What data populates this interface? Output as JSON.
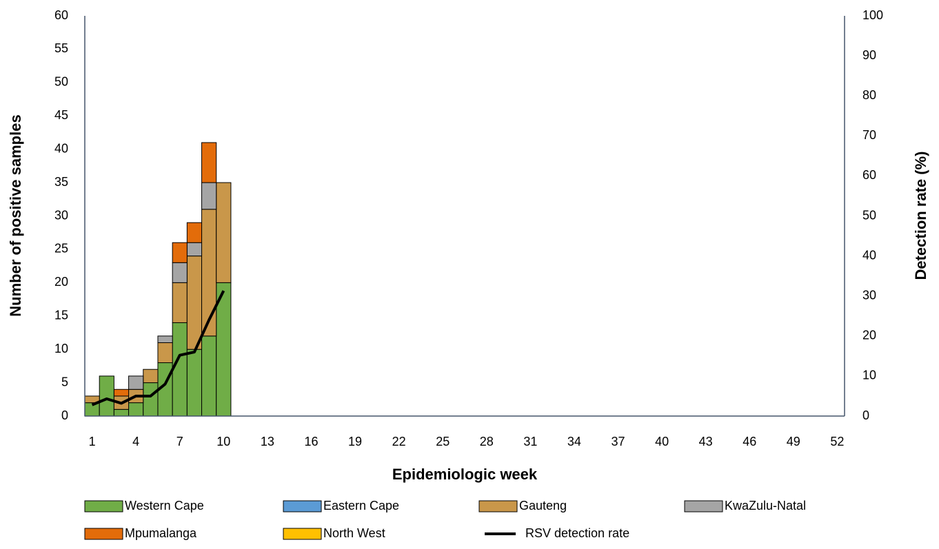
{
  "chart_data": {
    "type": "bar",
    "stacked": true,
    "xlabel": "Epidemiologic week",
    "ylabel": "Number of positive samples",
    "y2label": "Detection rate (%)",
    "categories": [
      1,
      null,
      null,
      4,
      null,
      null,
      7,
      null,
      null,
      10,
      null,
      null,
      13,
      null,
      null,
      16,
      null,
      null,
      19,
      null,
      null,
      22,
      null,
      null,
      25,
      null,
      null,
      28,
      null,
      null,
      31,
      null,
      null,
      34,
      null,
      null,
      37,
      null,
      null,
      40,
      null,
      null,
      43,
      null,
      null,
      46,
      null,
      null,
      49,
      null,
      null,
      52
    ],
    "series": [
      {
        "name": "Western Cape",
        "color": "#70ad47",
        "values": [
          2,
          6,
          1,
          2,
          5,
          8,
          14,
          10,
          12,
          20,
          null,
          null,
          null,
          null,
          null,
          null,
          null,
          null,
          null,
          null,
          null,
          null,
          null,
          null,
          null,
          null,
          null,
          null,
          null,
          null,
          null,
          null,
          null,
          null,
          null,
          null,
          null,
          null,
          null,
          null,
          null,
          null,
          null,
          null,
          null,
          null,
          null,
          null,
          null,
          null,
          null,
          null
        ]
      },
      {
        "name": "Eastern Cape",
        "color": "#5b9bd5",
        "values": [
          0,
          0,
          0,
          0,
          0,
          0,
          0,
          0,
          0,
          0,
          null,
          null,
          null,
          null,
          null,
          null,
          null,
          null,
          null,
          null,
          null,
          null,
          null,
          null,
          null,
          null,
          null,
          null,
          null,
          null,
          null,
          null,
          null,
          null,
          null,
          null,
          null,
          null,
          null,
          null,
          null,
          null,
          null,
          null,
          null,
          null,
          null,
          null,
          null,
          null,
          null,
          null
        ]
      },
      {
        "name": "Gauteng",
        "color": "#c9974a",
        "values": [
          1,
          0,
          2,
          2,
          2,
          3,
          6,
          14,
          19,
          15,
          null,
          null,
          null,
          null,
          null,
          null,
          null,
          null,
          null,
          null,
          null,
          null,
          null,
          null,
          null,
          null,
          null,
          null,
          null,
          null,
          null,
          null,
          null,
          null,
          null,
          null,
          null,
          null,
          null,
          null,
          null,
          null,
          null,
          null,
          null,
          null,
          null,
          null,
          null,
          null,
          null,
          null
        ]
      },
      {
        "name": "KwaZulu-Natal",
        "color": "#a5a5a5",
        "values": [
          0,
          0,
          0,
          2,
          0,
          1,
          3,
          2,
          4,
          0,
          null,
          null,
          null,
          null,
          null,
          null,
          null,
          null,
          null,
          null,
          null,
          null,
          null,
          null,
          null,
          null,
          null,
          null,
          null,
          null,
          null,
          null,
          null,
          null,
          null,
          null,
          null,
          null,
          null,
          null,
          null,
          null,
          null,
          null,
          null,
          null,
          null,
          null,
          null,
          null,
          null,
          null
        ]
      },
      {
        "name": "Mpumalanga",
        "color": "#e36c0a",
        "values": [
          0,
          0,
          1,
          0,
          0,
          0,
          3,
          3,
          6,
          0,
          null,
          null,
          null,
          null,
          null,
          null,
          null,
          null,
          null,
          null,
          null,
          null,
          null,
          null,
          null,
          null,
          null,
          null,
          null,
          null,
          null,
          null,
          null,
          null,
          null,
          null,
          null,
          null,
          null,
          null,
          null,
          null,
          null,
          null,
          null,
          null,
          null,
          null,
          null,
          null,
          null,
          null
        ]
      },
      {
        "name": "North West",
        "color": "#ffc000",
        "values": [
          0,
          0,
          0,
          0,
          0,
          0,
          0,
          0,
          0,
          0,
          null,
          null,
          null,
          null,
          null,
          null,
          null,
          null,
          null,
          null,
          null,
          null,
          null,
          null,
          null,
          null,
          null,
          null,
          null,
          null,
          null,
          null,
          null,
          null,
          null,
          null,
          null,
          null,
          null,
          null,
          null,
          null,
          null,
          null,
          null,
          null,
          null,
          null,
          null,
          null,
          null,
          null
        ]
      },
      {
        "name": "RSV detection rate",
        "color": "#000000",
        "type": "line",
        "axis": "y2",
        "values": [
          2.8,
          4.3,
          3.2,
          5,
          5,
          8,
          15.2,
          16,
          24,
          31.3,
          null,
          null,
          null,
          null,
          null,
          null,
          null,
          null,
          null,
          null,
          null,
          null,
          null,
          null,
          null,
          null,
          null,
          null,
          null,
          null,
          null,
          null,
          null,
          null,
          null,
          null,
          null,
          null,
          null,
          null,
          null,
          null,
          null,
          null,
          null,
          null,
          null,
          null,
          null,
          null,
          null,
          null
        ]
      }
    ],
    "ylim": [
      0,
      60
    ],
    "yticks": [
      0,
      5,
      10,
      15,
      20,
      25,
      30,
      35,
      40,
      45,
      50,
      55,
      60
    ],
    "y2lim": [
      0,
      100
    ],
    "y2ticks": [
      0,
      10,
      20,
      30,
      40,
      50,
      60,
      70,
      80,
      90,
      100
    ],
    "grid": false,
    "legend": "bottom"
  }
}
